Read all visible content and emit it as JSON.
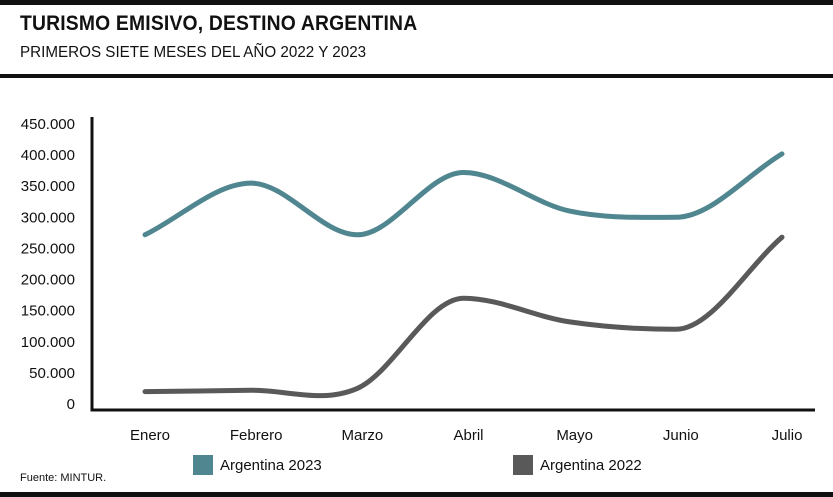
{
  "header": {
    "title": "TURISMO EMISIVO, DESTINO ARGENTINA",
    "subtitle": "PRIMEROS SIETE MESES DEL AÑO 2022 Y 2023"
  },
  "source": "Fuente: MINTUR.",
  "colors": {
    "series_2023": "#4f8690",
    "series_2022": "#595959",
    "axis": "#111111"
  },
  "chart_data": {
    "type": "line",
    "title": "TURISMO EMISIVO, DESTINO ARGENTINA",
    "subtitle": "PRIMEROS SIETE MESES DEL AÑO 2022 Y 2023",
    "xlabel": "",
    "ylabel": "",
    "categories": [
      "Enero",
      "Febrero",
      "Marzo",
      "Abril",
      "Mayo",
      "Junio",
      "Julio"
    ],
    "ylim": [
      0,
      450000
    ],
    "yticks": [
      0,
      50000,
      100000,
      150000,
      200000,
      250000,
      300000,
      350000,
      400000,
      450000
    ],
    "ytick_labels": [
      "0",
      "50.000",
      "100.000",
      "150.000",
      "200.000",
      "250.000",
      "300.000",
      "350.000",
      "400.000",
      "450.000"
    ],
    "grid": false,
    "legend_position": "bottom",
    "series": [
      {
        "name": "Argentina 2023",
        "color": "#4f8690",
        "values": [
          272000,
          355000,
          272000,
          372000,
          310000,
          300000,
          402000
        ]
      },
      {
        "name": "Argentina 2022",
        "color": "#595959",
        "values": [
          20000,
          22000,
          25000,
          170000,
          132000,
          120000,
          268000
        ]
      }
    ]
  }
}
